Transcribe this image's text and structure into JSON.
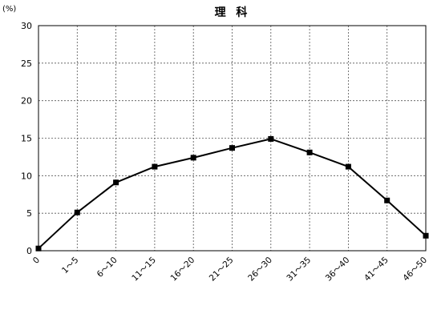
{
  "chart_data": {
    "type": "line",
    "title": "理 科",
    "ylabel": "(%)",
    "xlabel": "",
    "categories": [
      "0",
      "1～5",
      "6～10",
      "11～15",
      "16～20",
      "21～25",
      "26～30",
      "31～35",
      "36～40",
      "41～45",
      "46～50"
    ],
    "series": [
      {
        "values": [
          0.3,
          5.1,
          9.1,
          11.2,
          12.4,
          13.7,
          14.9,
          13.1,
          11.2,
          6.7,
          2.0
        ],
        "color": "#000000",
        "marker": "square"
      }
    ],
    "ylim": [
      0,
      30
    ],
    "yticks": [
      0,
      5,
      10,
      15,
      20,
      25,
      30
    ],
    "grid": true,
    "legend": "none"
  }
}
